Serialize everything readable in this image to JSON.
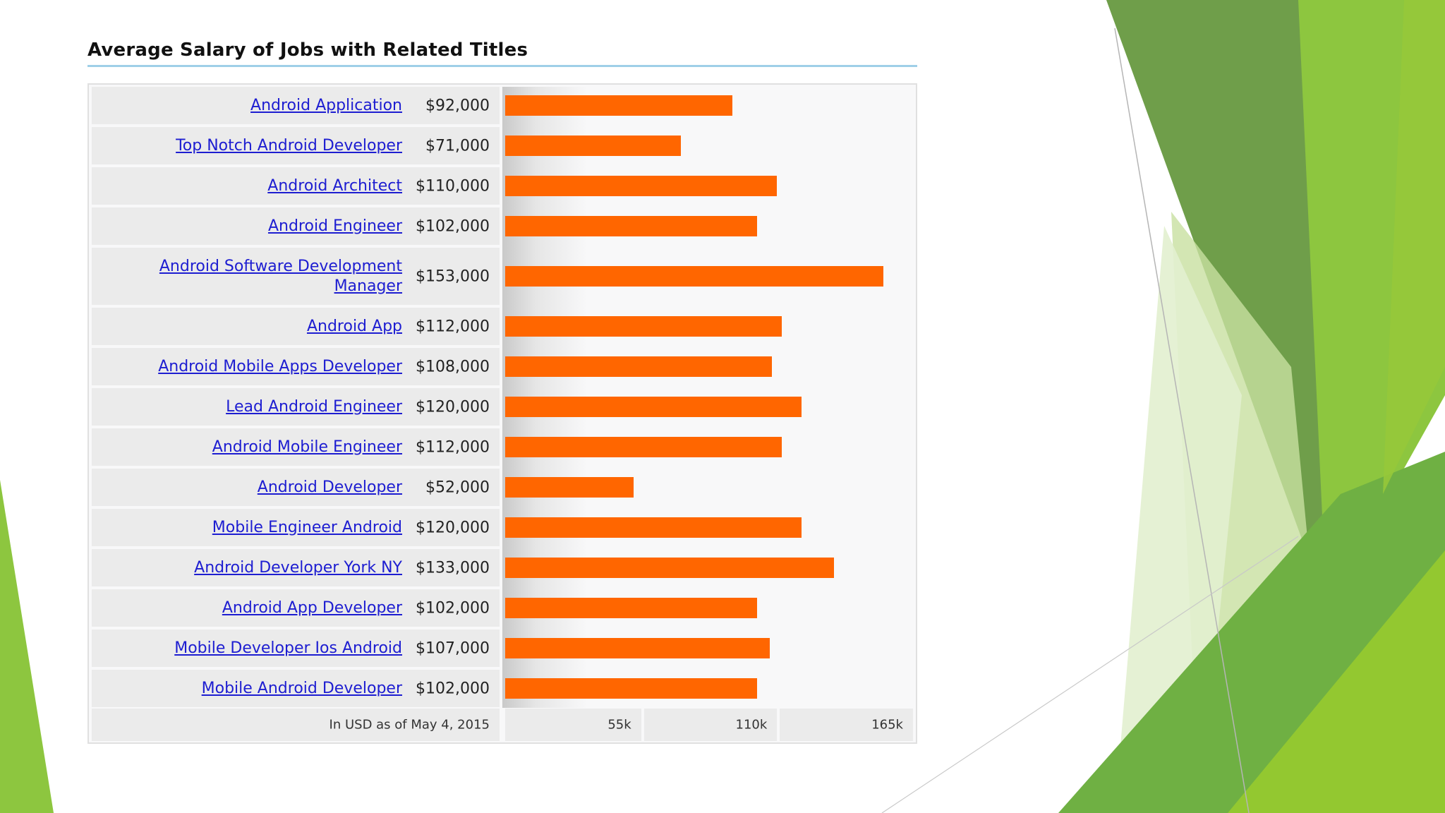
{
  "chart_data": {
    "type": "bar",
    "orientation": "horizontal",
    "title": "Average Salary of Jobs with Related Titles",
    "categories": [
      "Android Application",
      "Top Notch Android Developer",
      "Android Architect",
      "Android Engineer",
      "Android Software Development Manager",
      "Android App",
      "Android Mobile Apps Developer",
      "Lead Android Engineer",
      "Android Mobile Engineer",
      "Android Developer",
      "Mobile Engineer Android",
      "Android Developer York NY",
      "Android App Developer",
      "Mobile Developer Ios Android",
      "Mobile Android Developer"
    ],
    "values": [
      92000,
      71000,
      110000,
      102000,
      153000,
      112000,
      108000,
      120000,
      112000,
      52000,
      120000,
      133000,
      102000,
      107000,
      102000
    ],
    "value_labels": [
      "$92,000",
      "$71,000",
      "$110,000",
      "$102,000",
      "$153,000",
      "$112,000",
      "$108,000",
      "$120,000",
      "$112,000",
      "$52,000",
      "$120,000",
      "$133,000",
      "$102,000",
      "$107,000",
      "$102,000"
    ],
    "footnote": "In USD as of May 4, 2015",
    "x_ticks": [
      55000,
      110000,
      165000
    ],
    "x_tick_labels": [
      "55k",
      "110k",
      "165k"
    ],
    "xlim": [
      0,
      165000
    ],
    "bar_color": "#ff6600",
    "link_color": "#1d1dd1",
    "grid": false
  }
}
